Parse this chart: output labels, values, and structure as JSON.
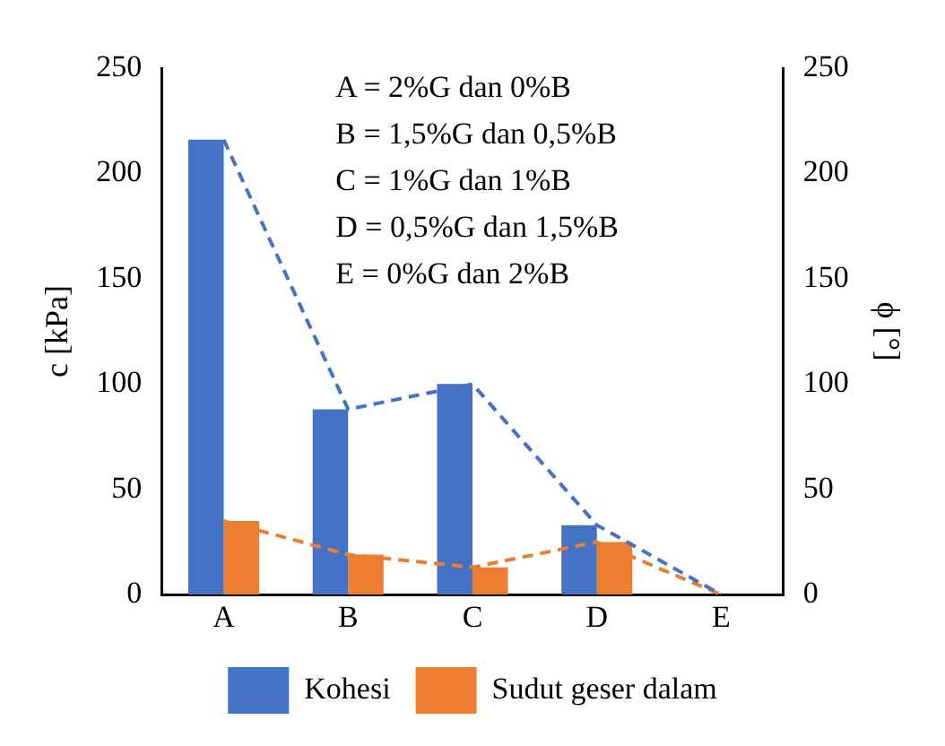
{
  "chart_data": {
    "type": "bar",
    "categories": [
      "A",
      "B",
      "C",
      "D",
      "E"
    ],
    "ylabel": "c [kPa]",
    "y2label": "ϕ [°]",
    "ylim": [
      0,
      250
    ],
    "yticks": [
      0,
      50,
      100,
      150,
      200,
      250
    ],
    "y2lim": [
      0,
      250
    ],
    "y2ticks": [
      0,
      50,
      100,
      150,
      200,
      250
    ],
    "series": [
      {
        "name": "Kohesi",
        "color": "#4472c4",
        "values": [
          216,
          88,
          100,
          33,
          0
        ]
      },
      {
        "name": "Sudut geser dalam",
        "color": "#ed7d31",
        "values": [
          35,
          19,
          13,
          25,
          0
        ]
      },
      {
        "type": "line",
        "color": "#4472c4",
        "values": [
          216,
          88,
          100,
          33,
          0
        ],
        "line_style": "dashed",
        "marker": "none"
      },
      {
        "type": "line",
        "color": "#ed7d31",
        "values": [
          35,
          19,
          13,
          25,
          0
        ],
        "line_style": "dashed",
        "marker": "none"
      }
    ],
    "annotations": [
      "A = 2%G dan 0%B",
      "B = 1,5%G dan 0,5%B",
      "C = 1%G dan 1%B",
      "D = 0,5%G dan 1,5%B",
      "E = 0%G dan 2%B"
    ],
    "legend": "bottom",
    "grid": false
  }
}
